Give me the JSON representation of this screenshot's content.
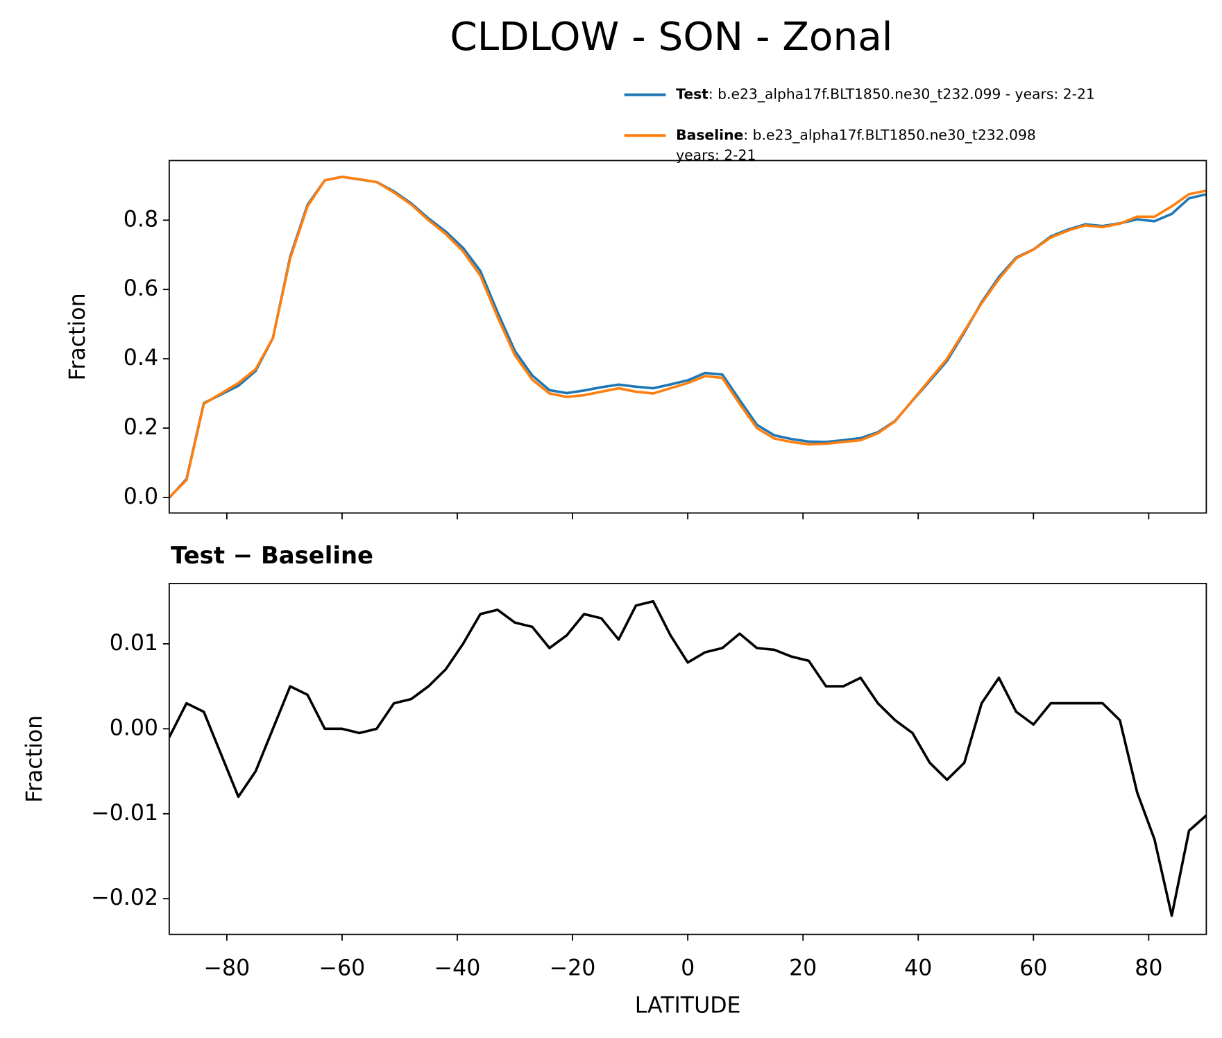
{
  "chart_data": [
    {
      "type": "line",
      "title": "CLDLOW - SON - Zonal",
      "ylabel": "Fraction",
      "x": [
        -90,
        -87,
        -84,
        -81,
        -78,
        -75,
        -72,
        -69,
        -66,
        -63,
        -60,
        -57,
        -54,
        -51,
        -48,
        -45,
        -42,
        -39,
        -36,
        -33,
        -30,
        -27,
        -24,
        -21,
        -18,
        -15,
        -12,
        -9,
        -6,
        -3,
        0,
        3,
        6,
        9,
        12,
        15,
        18,
        21,
        24,
        27,
        30,
        33,
        36,
        39,
        42,
        45,
        48,
        51,
        54,
        57,
        60,
        63,
        66,
        69,
        72,
        75,
        78,
        81,
        84,
        87,
        90
      ],
      "series": [
        {
          "name": "Test",
          "description": [
            ": b.e23_alpha17f.BLT1850.ne30_t232.099 - years: 2-21"
          ],
          "color": "#1f77b4",
          "values": [
            -0.001,
            0.053,
            0.272,
            0.297,
            0.322,
            0.365,
            0.46,
            0.695,
            0.844,
            0.915,
            0.925,
            0.9175,
            0.91,
            0.883,
            0.8485,
            0.805,
            0.767,
            0.72,
            0.6535,
            0.534,
            0.4225,
            0.352,
            0.3095,
            0.301,
            0.3085,
            0.318,
            0.3255,
            0.3195,
            0.315,
            0.326,
            0.3378,
            0.359,
            0.3545,
            0.2812,
            0.2095,
            0.1793,
            0.1685,
            0.161,
            0.16,
            0.165,
            0.171,
            0.188,
            0.221,
            0.2795,
            0.336,
            0.394,
            0.476,
            0.563,
            0.636,
            0.692,
            0.7155,
            0.753,
            0.773,
            0.788,
            0.783,
            0.791,
            0.8025,
            0.797,
            0.818,
            0.863,
            0.8748
          ]
        },
        {
          "name": "Baseline",
          "description": [
            ": b.e23_alpha17f.BLT1850.ne30_t232.098",
            "years: 2-21"
          ],
          "color": "#ff7f0e",
          "values": [
            0.0,
            0.05,
            0.27,
            0.3,
            0.33,
            0.37,
            0.46,
            0.69,
            0.84,
            0.915,
            0.925,
            0.918,
            0.91,
            0.88,
            0.845,
            0.8,
            0.76,
            0.71,
            0.64,
            0.52,
            0.41,
            0.34,
            0.3,
            0.29,
            0.295,
            0.305,
            0.315,
            0.305,
            0.3,
            0.315,
            0.33,
            0.35,
            0.345,
            0.27,
            0.2,
            0.17,
            0.16,
            0.153,
            0.155,
            0.16,
            0.165,
            0.185,
            0.22,
            0.28,
            0.34,
            0.4,
            0.48,
            0.56,
            0.63,
            0.69,
            0.715,
            0.75,
            0.77,
            0.785,
            0.78,
            0.79,
            0.81,
            0.81,
            0.84,
            0.875,
            0.885
          ]
        }
      ],
      "xlim": [
        -90,
        90
      ],
      "xticks": [
        -80,
        -60,
        -40,
        -20,
        0,
        20,
        40,
        60,
        80
      ],
      "xtick_labels": false,
      "ylim": [
        -0.045,
        0.972
      ],
      "yticks": [
        {
          "value": 0,
          "label": "0.0"
        },
        0.2,
        0.4,
        0.6,
        0.8
      ],
      "legend": "upper right"
    },
    {
      "type": "line",
      "title": "Test − Baseline",
      "ylabel": "Fraction",
      "xlabel": "LATITUDE",
      "color": "#000000",
      "x": [
        -90,
        -87,
        -84,
        -81,
        -78,
        -75,
        -72,
        -69,
        -66,
        -63,
        -60,
        -57,
        -54,
        -51,
        -48,
        -45,
        -42,
        -39,
        -36,
        -33,
        -30,
        -27,
        -24,
        -21,
        -18,
        -15,
        -12,
        -9,
        -6,
        -3,
        0,
        3,
        6,
        9,
        12,
        15,
        18,
        21,
        24,
        27,
        30,
        33,
        36,
        39,
        42,
        45,
        48,
        51,
        54,
        57,
        60,
        63,
        66,
        69,
        72,
        75,
        78,
        81,
        84,
        87,
        90
      ],
      "values": [
        -0.001,
        0.003,
        0.002,
        -0.003,
        -0.008,
        -0.005,
        0.0,
        0.005,
        0.004,
        0.0,
        0.0,
        -0.0005,
        0.0,
        0.003,
        0.0035,
        0.005,
        0.007,
        0.01,
        0.0135,
        0.014,
        0.0125,
        0.012,
        0.0095,
        0.011,
        0.0135,
        0.013,
        0.0105,
        0.0145,
        0.015,
        0.011,
        0.0078,
        0.009,
        0.0095,
        0.0112,
        0.0095,
        0.0093,
        0.0085,
        0.008,
        0.005,
        0.005,
        0.006,
        0.003,
        0.001,
        -0.0005,
        -0.004,
        -0.006,
        -0.004,
        0.003,
        0.006,
        0.002,
        0.0005,
        0.003,
        0.003,
        0.003,
        0.003,
        0.001,
        -0.0075,
        -0.013,
        -0.022,
        -0.012,
        -0.0102
      ],
      "xlim": [
        -90,
        90
      ],
      "xticks": [
        {
          "value": -80,
          "label": "−80"
        },
        {
          "value": -60,
          "label": "−60"
        },
        {
          "value": -40,
          "label": "−40"
        },
        {
          "value": -20,
          "label": "−20"
        },
        0,
        20,
        40,
        60,
        80
      ],
      "xtick_labels": true,
      "ylim": [
        -0.0242,
        0.0171
      ],
      "yticks": [
        {
          "value": -0.02,
          "label": "−0.02"
        },
        {
          "value": -0.01,
          "label": "−0.01"
        },
        {
          "value": 0,
          "label": "0.00"
        },
        0.01
      ]
    }
  ]
}
